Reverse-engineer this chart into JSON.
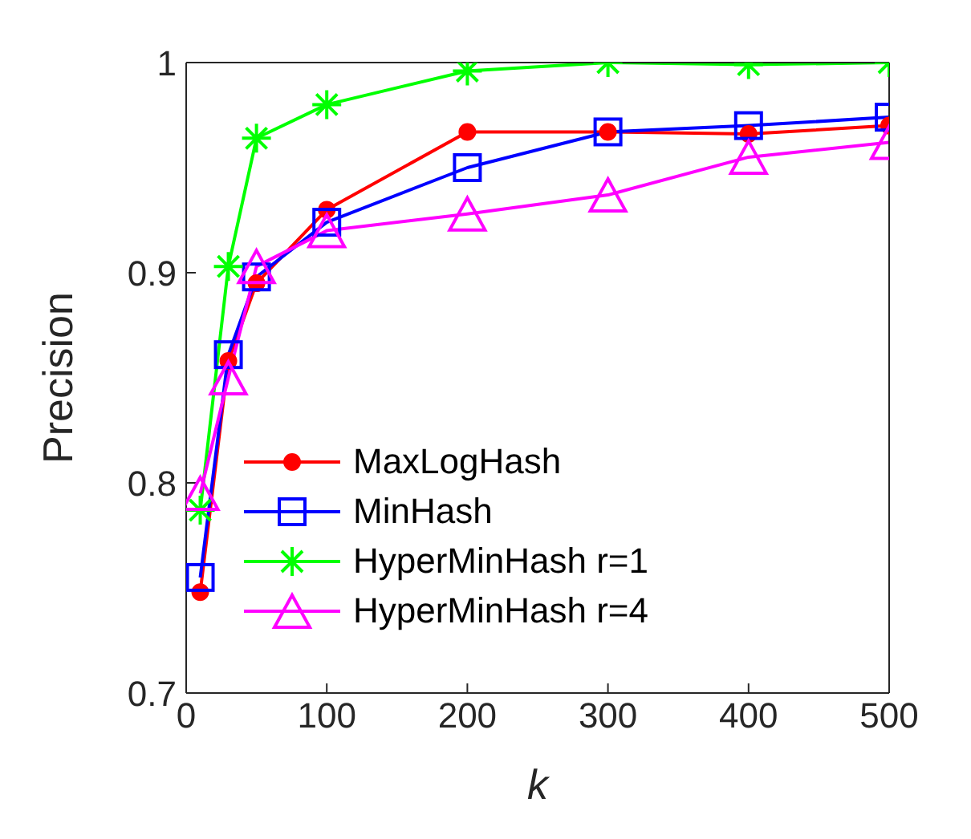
{
  "chart_data": {
    "type": "line",
    "xlabel": "k",
    "ylabel": "Precision",
    "x": [
      10,
      30,
      50,
      100,
      200,
      300,
      400,
      500
    ],
    "xlim": [
      0,
      500
    ],
    "xticks": [
      0,
      100,
      200,
      300,
      400,
      500
    ],
    "ylim": [
      0.7,
      1
    ],
    "yticks": [
      0.7,
      0.8,
      0.9,
      1
    ],
    "legend": "bottom left",
    "line_style": "solid",
    "series": [
      {
        "name": "MaxLogHash",
        "color": "#ff0000",
        "marker": "circle",
        "values": [
          0.748,
          0.858,
          0.895,
          0.93,
          0.967,
          0.967,
          0.966,
          0.97
        ]
      },
      {
        "name": "MinHash",
        "color": "#0000ff",
        "marker": "square",
        "values": [
          0.755,
          0.861,
          0.898,
          0.924,
          0.95,
          0.967,
          0.97,
          0.974
        ]
      },
      {
        "name": "HyperMinHash r=1",
        "color": "#00ff00",
        "marker": "cross",
        "values": [
          0.787,
          0.903,
          0.964,
          0.98,
          0.996,
          1.0,
          0.999,
          1.0
        ]
      },
      {
        "name": "HyperMinHash r=4",
        "color": "#ff00ff",
        "marker": "triangle",
        "values": [
          0.795,
          0.85,
          0.903,
          0.92,
          0.928,
          0.937,
          0.955,
          0.962
        ]
      }
    ]
  }
}
